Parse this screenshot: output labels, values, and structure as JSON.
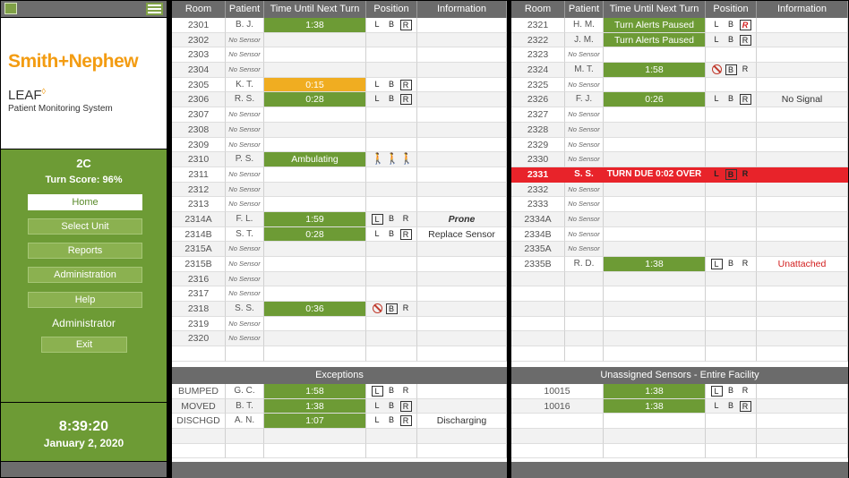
{
  "sidebar": {
    "brand": "Smith+Nephew",
    "product": "LEAF",
    "product_mark": "◊",
    "subtitle": "Patient Monitoring System",
    "unit": "2C",
    "turn_score": "Turn Score: 96%",
    "nav": [
      {
        "label": "Home",
        "active": true
      },
      {
        "label": "Select Unit"
      },
      {
        "label": "Reports"
      },
      {
        "label": "Administration"
      },
      {
        "label": "Help"
      }
    ],
    "user_role": "Administrator",
    "exit_label": "Exit",
    "time": "8:39:20",
    "date": "January 2, 2020"
  },
  "headers": {
    "room": "Room",
    "patient": "Patient",
    "time": "Time Until Next Turn",
    "position": "Position",
    "information": "Information"
  },
  "no_sensor_label": "No Sensor",
  "left_rows": [
    {
      "room": "2301",
      "patient": "B. J.",
      "timer": "1:38",
      "timer_color": "green",
      "pos": [
        "L",
        "B",
        "[R]"
      ],
      "info": ""
    },
    {
      "room": "2302",
      "no_sensor": true
    },
    {
      "room": "2303",
      "no_sensor": true
    },
    {
      "room": "2304",
      "no_sensor": true
    },
    {
      "room": "2305",
      "patient": "K. T.",
      "timer": "0:15",
      "timer_color": "amber",
      "pos": [
        "L",
        "B",
        "[R]"
      ],
      "info": ""
    },
    {
      "room": "2306",
      "patient": "R. S.",
      "timer": "0:28",
      "timer_color": "green",
      "pos": [
        "L",
        "B",
        "[R]"
      ],
      "info": ""
    },
    {
      "room": "2307",
      "no_sensor": true
    },
    {
      "room": "2308",
      "no_sensor": true
    },
    {
      "room": "2309",
      "no_sensor": true
    },
    {
      "room": "2310",
      "patient": "P. S.",
      "timer": "Ambulating",
      "timer_color": "green",
      "pos": [
        "walk",
        "walk",
        "walk"
      ],
      "info": ""
    },
    {
      "room": "2311",
      "no_sensor": true
    },
    {
      "room": "2312",
      "no_sensor": true
    },
    {
      "room": "2313",
      "no_sensor": true
    },
    {
      "room": "2314A",
      "patient": "F. L.",
      "timer": "1:59",
      "timer_color": "green",
      "pos": [
        "[L]",
        "B",
        "R"
      ],
      "info": "Prone",
      "info_style": "bold"
    },
    {
      "room": "2314B",
      "patient": "S. T.",
      "timer": "0:28",
      "timer_color": "green",
      "pos": [
        "L",
        "B",
        "[R]"
      ],
      "info": "Replace Sensor",
      "info_style": "normal"
    },
    {
      "room": "2315A",
      "no_sensor": true
    },
    {
      "room": "2315B",
      "no_sensor": true
    },
    {
      "room": "2316",
      "no_sensor": true
    },
    {
      "room": "2317",
      "no_sensor": true
    },
    {
      "room": "2318",
      "patient": "S. S.",
      "timer": "0:36",
      "timer_color": "green",
      "pos": [
        "nosign",
        "[B]",
        "R"
      ],
      "info": ""
    },
    {
      "room": "2319",
      "no_sensor": true
    },
    {
      "room": "2320",
      "no_sensor": true
    }
  ],
  "right_rows": [
    {
      "room": "2321",
      "patient": "H. M.",
      "timer": "Turn Alerts Paused",
      "timer_color": "green",
      "pos": [
        "L",
        "B",
        "[R!]"
      ],
      "info": ""
    },
    {
      "room": "2322",
      "patient": "J. M.",
      "timer": "Turn Alerts Paused",
      "timer_color": "green",
      "pos": [
        "L",
        "B",
        "[R]"
      ],
      "info": ""
    },
    {
      "room": "2323",
      "no_sensor": true
    },
    {
      "room": "2324",
      "patient": "M. T.",
      "timer": "1:58",
      "timer_color": "green",
      "pos": [
        "nosign",
        "[B]",
        "R"
      ],
      "info": ""
    },
    {
      "room": "2325",
      "no_sensor": true
    },
    {
      "room": "2326",
      "patient": "F. J.",
      "timer": "0:26",
      "timer_color": "green",
      "pos": [
        "L",
        "B",
        "[R]"
      ],
      "info": "No Signal",
      "info_style": "normal"
    },
    {
      "room": "2327",
      "no_sensor": true
    },
    {
      "room": "2328",
      "no_sensor": true
    },
    {
      "room": "2329",
      "no_sensor": true
    },
    {
      "room": "2330",
      "no_sensor": true
    },
    {
      "room": "2331",
      "patient": "S. S.",
      "timer": "TURN DUE  0:02 OVER",
      "timer_color": "due",
      "pos": [
        "L",
        "[B]",
        "R"
      ],
      "info": "",
      "due": true
    },
    {
      "room": "2332",
      "no_sensor": true
    },
    {
      "room": "2333",
      "no_sensor": true
    },
    {
      "room": "2334A",
      "no_sensor": true
    },
    {
      "room": "2334B",
      "no_sensor": true
    },
    {
      "room": "2335A",
      "no_sensor": true
    },
    {
      "room": "2335B",
      "patient": "R. D.",
      "timer": "1:38",
      "timer_color": "green",
      "pos": [
        "[L]",
        "B",
        "R"
      ],
      "info": "Unattached",
      "info_style": "red"
    }
  ],
  "exceptions": {
    "title": "Exceptions",
    "rows": [
      {
        "room": "BUMPED",
        "patient": "G. C.",
        "timer": "1:58",
        "timer_color": "green",
        "pos": [
          "[L]",
          "B",
          "R"
        ],
        "info": ""
      },
      {
        "room": "MOVED",
        "patient": "B. T.",
        "timer": "1:38",
        "timer_color": "green",
        "pos": [
          "L",
          "B",
          "[R]"
        ],
        "info": ""
      },
      {
        "room": "DISCHGD",
        "patient": "A. N.",
        "timer": "1:07",
        "timer_color": "green",
        "pos": [
          "L",
          "B",
          "[R]"
        ],
        "info": "Discharging",
        "info_style": "normal"
      }
    ]
  },
  "unassigned": {
    "title": "Unassigned Sensors - Entire Facility",
    "rows": [
      {
        "sensor": "10015",
        "timer": "1:38",
        "timer_color": "green",
        "pos": [
          "[L]",
          "B",
          "R"
        ]
      },
      {
        "sensor": "10016",
        "timer": "1:38",
        "timer_color": "green",
        "pos": [
          "L",
          "B",
          "[R]"
        ]
      }
    ]
  }
}
